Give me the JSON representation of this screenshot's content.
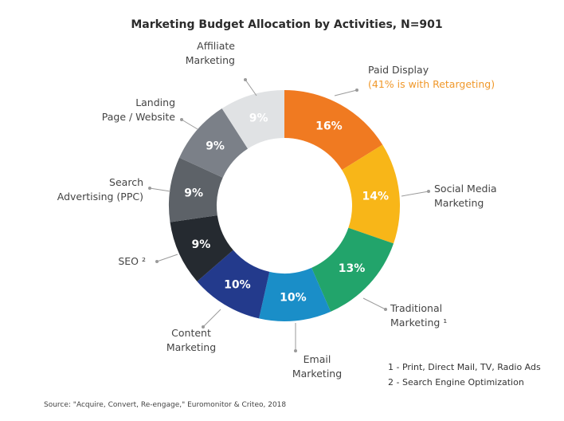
{
  "chart_data": {
    "type": "pie",
    "title": "Marketing Budget Allocation by Activities, N=901",
    "slices": [
      {
        "label_lines": [
          "Paid Display"
        ],
        "sub": "(41% is with Retargeting)",
        "value": 16,
        "value_label": "16%",
        "color": "#f07a21"
      },
      {
        "label_lines": [
          "Social Media",
          "Marketing"
        ],
        "value": 14,
        "value_label": "14%",
        "color": "#f8b618"
      },
      {
        "label_lines": [
          "Traditional",
          "Marketing ¹"
        ],
        "value": 13,
        "value_label": "13%",
        "color": "#22a46b"
      },
      {
        "label_lines": [
          "Email",
          "Marketing"
        ],
        "value": 10,
        "value_label": "10%",
        "color": "#1a8ec8"
      },
      {
        "label_lines": [
          "Content",
          "Marketing"
        ],
        "value": 10,
        "value_label": "10%",
        "color": "#233a8c"
      },
      {
        "label_lines": [
          "SEO ²"
        ],
        "value": 9,
        "value_label": "9%",
        "color": "#252a30"
      },
      {
        "label_lines": [
          "Search",
          "Advertising (PPC)"
        ],
        "value": 9,
        "value_label": "9%",
        "color": "#5d6268"
      },
      {
        "label_lines": [
          "Landing",
          "Page / Website"
        ],
        "value": 9,
        "value_label": "9%",
        "color": "#7b8088"
      },
      {
        "label_lines": [
          "Affiliate",
          "Marketing"
        ],
        "value": 9,
        "value_label": "9%",
        "color": "#e0e2e4"
      }
    ]
  },
  "notes": [
    "1 - Print, Direct Mail, TV, Radio Ads",
    "2 - Search Engine Optimization"
  ],
  "source": "Source: \"Acquire, Convert, Re-engage,\" Euromonitor & Criteo, 2018"
}
